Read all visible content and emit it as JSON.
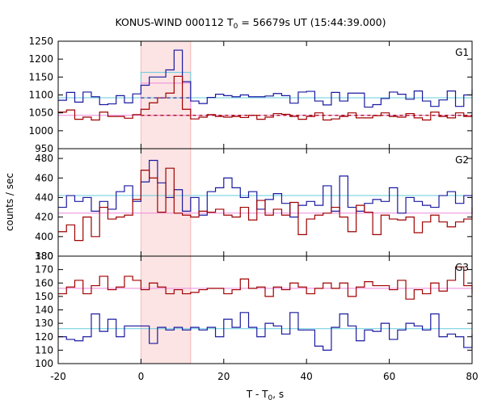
{
  "chart_data": {
    "type": "line",
    "title_main": "KONUS-WIND 000112 T",
    "title_sub": "0",
    "title_rest": " = 56679s UT (15:44:39.000)",
    "xlabel_main": "T - T",
    "xlabel_sub": "0",
    "xlabel_rest": ", s",
    "ylabel": "counts / sec",
    "xlim": [
      -20,
      80
    ],
    "xticks": [
      -20,
      0,
      20,
      40,
      60,
      80
    ],
    "shaded_interval": [
      0,
      12
    ],
    "colors": {
      "shade": "#fce4e4",
      "shade_edge": "#f5b8b8",
      "red_series": "#a00000",
      "blue_series": "#1a1aa0",
      "cyan_line": "#66ccdd",
      "pink_line": "#ee88dd"
    },
    "bin_edges": [
      -20,
      -18,
      -16,
      -14,
      -12,
      -10,
      -8,
      -6,
      -4,
      -2,
      0,
      2,
      4,
      6,
      8,
      10,
      12,
      14,
      16,
      18,
      20,
      22,
      24,
      26,
      28,
      30,
      32,
      34,
      36,
      38,
      40,
      42,
      44,
      46,
      48,
      50,
      52,
      54,
      56,
      58,
      60,
      62,
      64,
      66,
      68,
      70,
      72,
      74,
      76,
      78,
      80
    ],
    "panels": [
      {
        "label": "G1",
        "ylim": [
          950,
          1250
        ],
        "yticks": [
          950,
          1000,
          1050,
          1100,
          1150,
          1200,
          1250
        ],
        "levels": [
          {
            "color": "cyan",
            "value": 1092,
            "style": "solid"
          },
          {
            "color": "pink",
            "value": 1043,
            "style": "solid"
          }
        ],
        "interval_levels": [
          {
            "color": "blue",
            "value": 1092,
            "style": "dashed"
          },
          {
            "color": "red",
            "value": 1043,
            "style": "dashed"
          }
        ],
        "interval_boxes": [
          {
            "color": "cyan",
            "low": 1092,
            "high": 1163
          },
          {
            "color": "pink",
            "low": 1043,
            "high": 1133
          }
        ],
        "series": [
          {
            "color": "blue",
            "values": [
              1085,
              1107,
              1080,
              1108,
              1095,
              1073,
              1075,
              1098,
              1078,
              1103,
              1127,
              1150,
              1150,
              1170,
              1225,
              1137,
              1083,
              1076,
              1093,
              1102,
              1098,
              1095,
              1100,
              1095,
              1095,
              1097,
              1104,
              1098,
              1077,
              1108,
              1110,
              1083,
              1072,
              1107,
              1083,
              1105,
              1105,
              1066,
              1073,
              1090,
              1108,
              1102,
              1088,
              1111,
              1083,
              1068,
              1086,
              1111,
              1068,
              1100,
              1116
            ]
          },
          {
            "color": "red",
            "values": [
              1052,
              1058,
              1032,
              1038,
              1030,
              1052,
              1040,
              1040,
              1035,
              1045,
              1060,
              1078,
              1092,
              1105,
              1152,
              1060,
              1033,
              1038,
              1045,
              1040,
              1038,
              1040,
              1037,
              1043,
              1032,
              1038,
              1048,
              1046,
              1040,
              1032,
              1040,
              1050,
              1030,
              1033,
              1040,
              1050,
              1036,
              1036,
              1042,
              1050,
              1040,
              1038,
              1048,
              1036,
              1030,
              1052,
              1040,
              1036,
              1050,
              1040,
              1038
            ]
          }
        ]
      },
      {
        "label": "G2",
        "ylim": [
          380,
          490
        ],
        "yticks": [
          380,
          400,
          420,
          440,
          460,
          480
        ],
        "levels": [
          {
            "color": "cyan",
            "value": 442,
            "style": "solid"
          },
          {
            "color": "pink",
            "value": 424,
            "style": "solid"
          }
        ],
        "series": [
          {
            "color": "blue",
            "values": [
              430,
              442,
              436,
              440,
              426,
              436,
              428,
              446,
              452,
              436,
              456,
              478,
              455,
              440,
              448,
              426,
              440,
              422,
              446,
              450,
              460,
              450,
              440,
              446,
              428,
              438,
              444,
              434,
              420,
              432,
              436,
              432,
              452,
              426,
              462,
              430,
              426,
              434,
              438,
              436,
              450,
              424,
              440,
              436,
              432,
              430,
              442,
              446,
              434,
              442,
              423
            ]
          },
          {
            "color": "red",
            "values": [
              405,
              412,
              396,
              420,
              400,
              430,
              418,
              420,
              422,
              438,
              468,
              460,
              425,
              470,
              424,
              422,
              420,
              426,
              425,
              428,
              422,
              420,
              430,
              417,
              437,
              422,
              428,
              422,
              435,
              402,
              418,
              422,
              424,
              430,
              420,
              405,
              432,
              425,
              402,
              422,
              418,
              417,
              420,
              404,
              415,
              422,
              415,
              410,
              415,
              418,
              430
            ]
          }
        ]
      },
      {
        "label": "G3",
        "ylim": [
          100,
          180
        ],
        "yticks": [
          100,
          110,
          120,
          130,
          140,
          150,
          160,
          170,
          180
        ],
        "levels": [
          {
            "color": "pink",
            "value": 156,
            "style": "solid"
          },
          {
            "color": "cyan",
            "value": 126,
            "style": "solid"
          }
        ],
        "series": [
          {
            "color": "red",
            "values": [
              152,
              157,
              162,
              152,
              158,
              165,
              155,
              157,
              165,
              162,
              155,
              160,
              157,
              152,
              155,
              152,
              153,
              155,
              156,
              156,
              152,
              155,
              163,
              156,
              157,
              150,
              157,
              155,
              160,
              157,
              152,
              156,
              160,
              156,
              160,
              150,
              157,
              161,
              158,
              158,
              155,
              162,
              148,
              155,
              152,
              160,
              154,
              162,
              172,
              158,
              152
            ]
          },
          {
            "color": "blue",
            "values": [
              120,
              118,
              117,
              120,
              137,
              124,
              133,
              120,
              128,
              128,
              128,
              115,
              127,
              125,
              127,
              125,
              127,
              125,
              127,
              120,
              133,
              127,
              138,
              127,
              120,
              130,
              128,
              122,
              138,
              125,
              125,
              113,
              110,
              127,
              137,
              128,
              117,
              125,
              124,
              130,
              118,
              125,
              130,
              128,
              125,
              137,
              120,
              122,
              120,
              112,
              122
            ]
          }
        ]
      }
    ]
  }
}
